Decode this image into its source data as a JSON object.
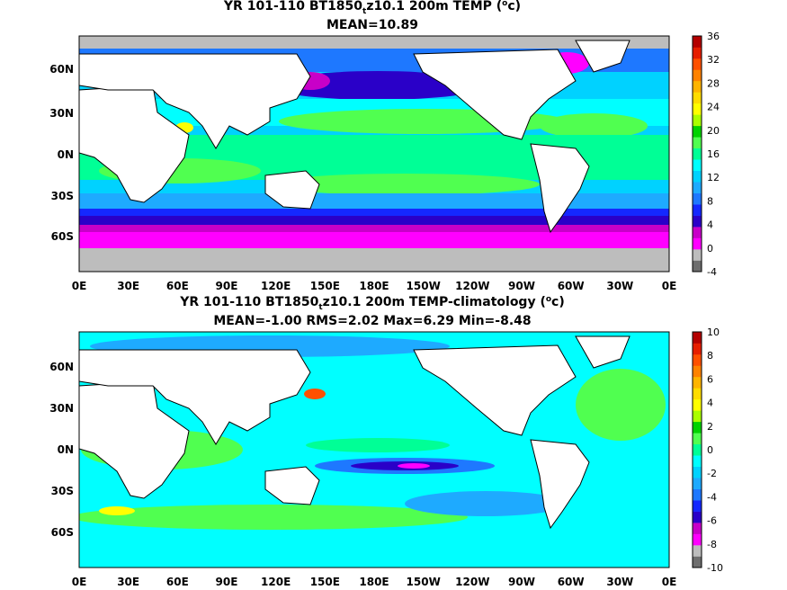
{
  "panels": [
    {
      "title_main": "YR 101-110 BT1850",
      "title_sub": "t",
      "title_rest": "z10.1 200m TEMP (",
      "title_unit_sup": "o",
      "title_unit_end": "c)",
      "stats": "MEAN=10.89",
      "field": "absolute",
      "y_tick_labels": [
        "60N",
        "30N",
        "0N",
        "30S",
        "60S"
      ],
      "x_tick_labels": [
        "0E",
        "30E",
        "60E",
        "90E",
        "120E",
        "150E",
        "180E",
        "150W",
        "120W",
        "90W",
        "60W",
        "30W",
        "0E"
      ],
      "colorbar": {
        "labels": [
          "36",
          "32",
          "28",
          "24",
          "20",
          "16",
          "12",
          "8",
          "4",
          "0",
          "-4"
        ],
        "colors": [
          "#6e6e6e",
          "#bdbdbd",
          "#ff00ff",
          "#c800c8",
          "#2a00c8",
          "#1428ff",
          "#1e78ff",
          "#1eaaff",
          "#00d2ff",
          "#00ffff",
          "#00ff96",
          "#50ff50",
          "#00d200",
          "#aaff00",
          "#ffff00",
          "#ffdc00",
          "#ffb400",
          "#ff8200",
          "#ff5000",
          "#e61e00",
          "#b40000"
        ]
      }
    },
    {
      "title_main": "YR 101-110 BT1850",
      "title_sub": "t",
      "title_rest": "z10.1 200m TEMP-climatology (",
      "title_unit_sup": "o",
      "title_unit_end": "c)",
      "stats": "MEAN=-1.00   RMS=2.02   Max=6.29   Min=-8.48",
      "field": "anomaly",
      "y_tick_labels": [
        "60N",
        "30N",
        "0N",
        "30S",
        "60S"
      ],
      "x_tick_labels": [
        "0E",
        "30E",
        "60E",
        "90E",
        "120E",
        "150E",
        "180E",
        "150W",
        "120W",
        "90W",
        "60W",
        "30W",
        "0E"
      ],
      "colorbar": {
        "labels": [
          "10",
          "8",
          "6",
          "4",
          "2",
          "0",
          "-2",
          "-4",
          "-6",
          "-8",
          "-10"
        ],
        "colors": [
          "#6e6e6e",
          "#bdbdbd",
          "#ff00ff",
          "#c800c8",
          "#2a00c8",
          "#1428ff",
          "#1e78ff",
          "#1eaaff",
          "#00d2ff",
          "#00ffff",
          "#00ff96",
          "#50ff50",
          "#00d200",
          "#aaff00",
          "#ffff00",
          "#ffdc00",
          "#ffb400",
          "#ff8200",
          "#ff5000",
          "#e61e00",
          "#b40000"
        ]
      }
    }
  ],
  "colors": {
    "land": "#ffffff",
    "coast": "#000000",
    "ice": "#bdbdbd"
  }
}
